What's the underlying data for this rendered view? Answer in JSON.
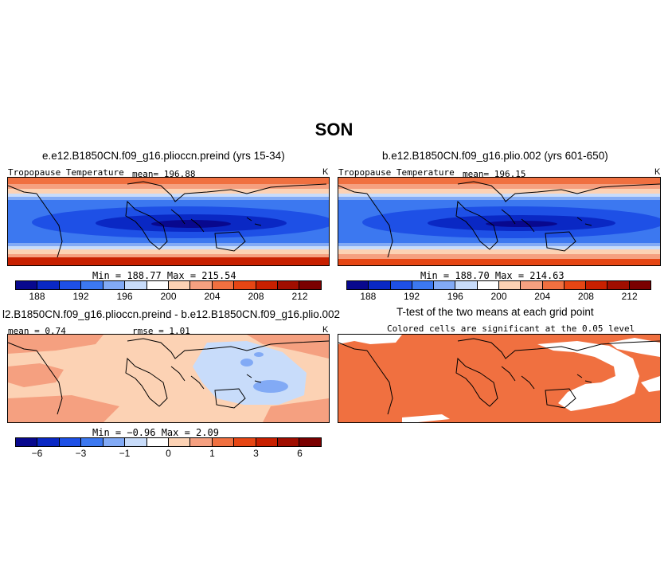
{
  "title": "SON",
  "panels": {
    "p1": {
      "title": "e.e12.B1850CN.f09_g16.plioccn.preind (yrs 15-34)",
      "variable": "Tropopause Temperature",
      "mean": "mean= 196.88",
      "unit": "K",
      "minmax": "Min = 188.77 Max = 215.54"
    },
    "p2": {
      "title": "b.e12.B1850CN.f09_g16.plio.002 (yrs 601-650)",
      "variable": "Tropopause Temperature",
      "mean": "mean= 196.15",
      "unit": "K",
      "minmax": "Min = 188.70 Max = 214.63"
    },
    "p3": {
      "title": "l2.B1850CN.f09_g16.plioccn.preind - b.e12.B1850CN.f09_g16.plio.002",
      "mean": "mean =  0.74",
      "rmse": "rmse =  1.01",
      "unit": "K",
      "minmax": "Min = −0.96 Max =  2.09"
    },
    "p4": {
      "title": "T-test of the two means at each grid point",
      "subtitle": "Colored cells are significant at the 0.05 level"
    }
  },
  "colorbar_abs": {
    "colors": [
      "#08088e",
      "#0a28c4",
      "#1e50e6",
      "#3c78f0",
      "#82aaf5",
      "#c8dcfa",
      "#ffffff",
      "#fcd2b4",
      "#f5a080",
      "#f07040",
      "#e64614",
      "#c82000",
      "#a00e00",
      "#7a0000"
    ],
    "ticks": [
      "188",
      "192",
      "196",
      "200",
      "204",
      "208",
      "212"
    ]
  },
  "colorbar_diff": {
    "colors": [
      "#08088e",
      "#0a28c4",
      "#1e50e6",
      "#3c78f0",
      "#82aaf5",
      "#c8dcfa",
      "#ffffff",
      "#fcd2b4",
      "#f5a080",
      "#f07040",
      "#e64614",
      "#c82000",
      "#a00e00",
      "#7a0000"
    ],
    "ticks": [
      "−6",
      "−3",
      "−1",
      "0",
      "1",
      "3",
      "6"
    ]
  },
  "ttest_color": "#f07040"
}
